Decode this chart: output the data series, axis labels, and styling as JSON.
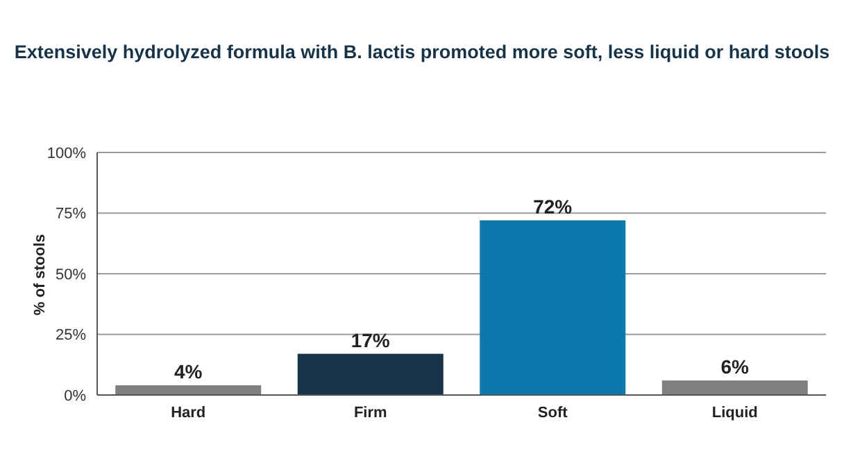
{
  "chart_data": {
    "type": "bar",
    "title": "Extensively hydrolyzed formula with B. lactis promoted more soft, less liquid or hard stools",
    "ylabel": "% of stools",
    "categories": [
      "Hard",
      "Firm",
      "Soft",
      "Liquid"
    ],
    "values": [
      4,
      17,
      72,
      6
    ],
    "colors": [
      "#7f7f7f",
      "#163449",
      "#0b79ae",
      "#7f7f7f"
    ],
    "value_labels": [
      "4%",
      "17%",
      "72%",
      "6%"
    ],
    "ylim": [
      0,
      100
    ],
    "yticks": [
      {
        "value": 0,
        "label": "0%"
      },
      {
        "value": 25,
        "label": "25%"
      },
      {
        "value": 50,
        "label": "50%"
      },
      {
        "value": 75,
        "label": "75%"
      },
      {
        "value": 100,
        "label": "100%"
      }
    ],
    "grid": "y"
  }
}
